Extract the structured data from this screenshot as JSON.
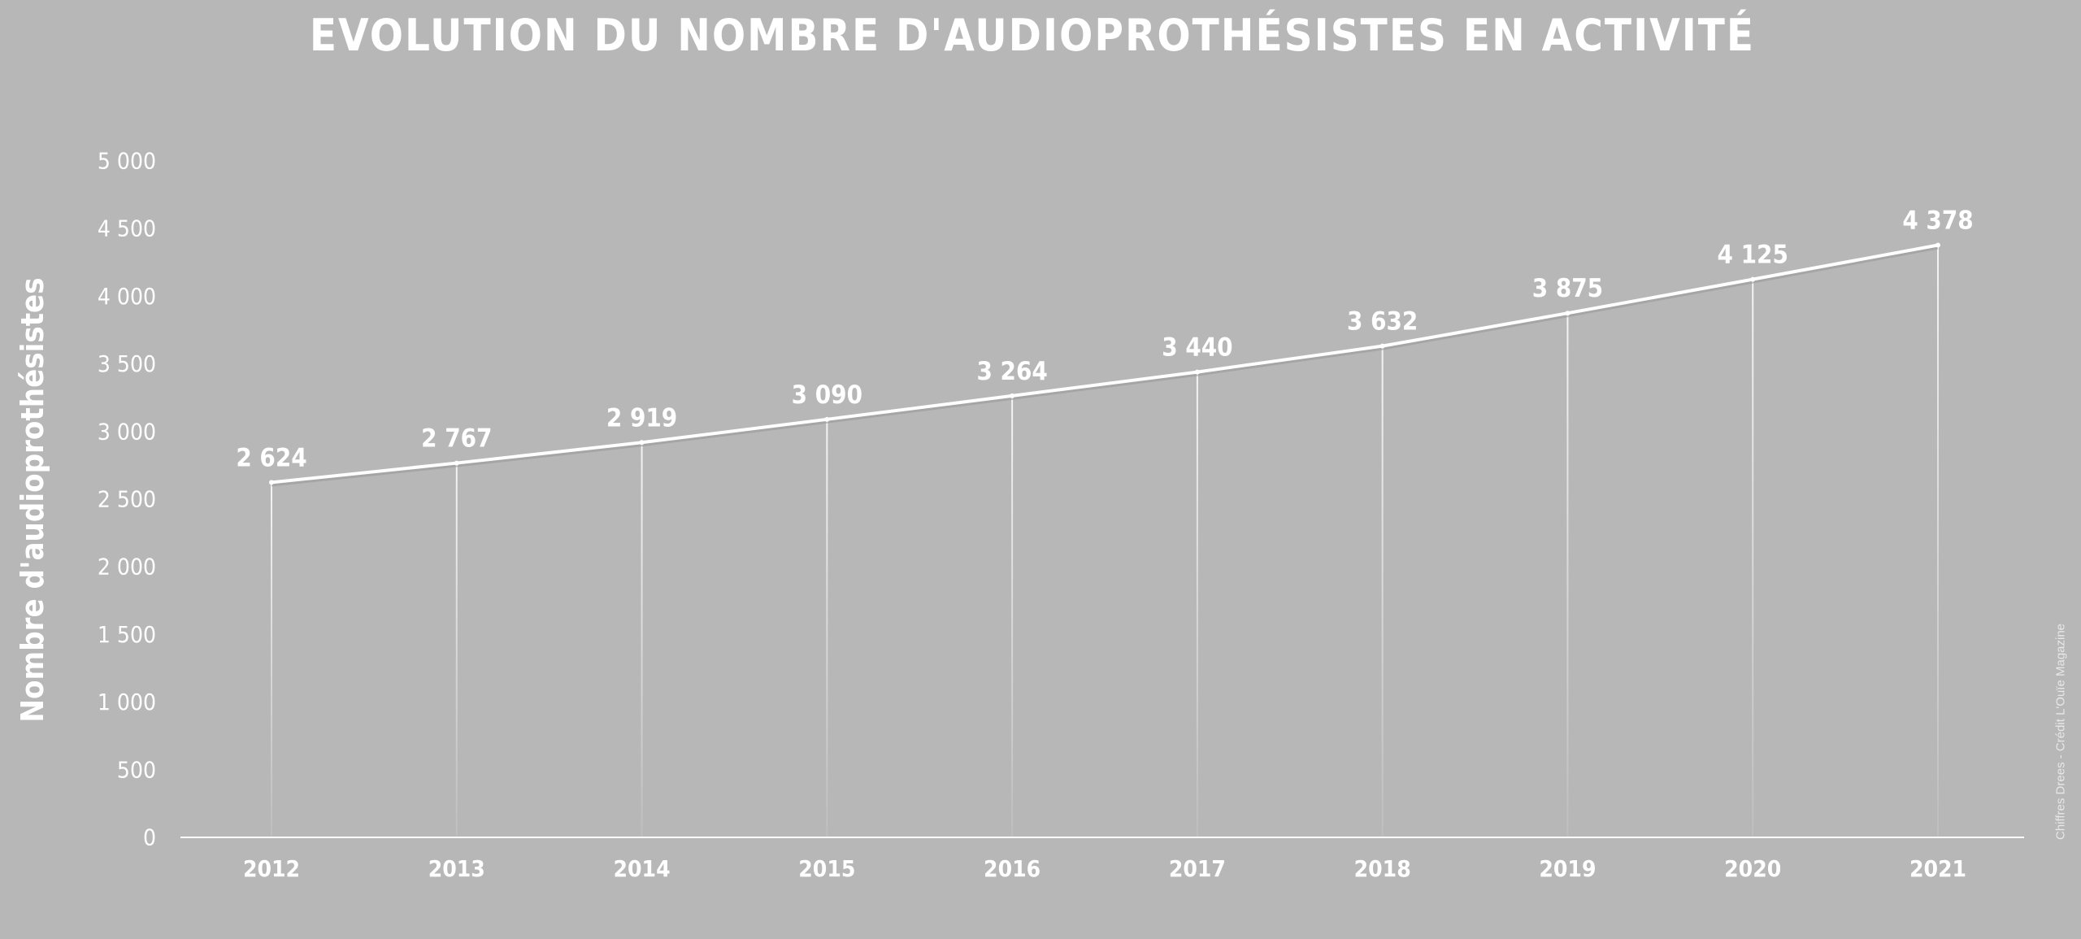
{
  "chart_data": {
    "type": "line",
    "title": "EVOLUTION DU NOMBRE D'AUDIOPROTHÉSISTES EN ACTIVITÉ",
    "ylabel": "Nombre d'audioprothésistes",
    "xlabel": "",
    "categories": [
      "2012",
      "2013",
      "2014",
      "2015",
      "2016",
      "2017",
      "2018",
      "2019",
      "2020",
      "2021"
    ],
    "values": [
      2624,
      2767,
      2919,
      3090,
      3264,
      3440,
      3632,
      3875,
      4125,
      4378
    ],
    "value_labels": [
      "2 624",
      "2 767",
      "2 919",
      "3 090",
      "3 264",
      "3 440",
      "3 632",
      "3 875",
      "4 125",
      "4 378"
    ],
    "ylim": [
      0,
      5000
    ],
    "yticks": [
      0,
      500,
      1000,
      1500,
      2000,
      2500,
      3000,
      3500,
      4000,
      4500,
      5000
    ],
    "ytick_labels": [
      "0",
      "500",
      "1 000",
      "1 500",
      "2 000",
      "2 500",
      "3 000",
      "3 500",
      "4 000",
      "4 500",
      "5 000"
    ],
    "grid": false,
    "legend": "none",
    "colors": {
      "background": "#b7b7b7",
      "line": "#ffffff",
      "text": "#ffffff"
    }
  },
  "credit": "Chiffres Drees - Crédit L'Ouïe Magazine"
}
